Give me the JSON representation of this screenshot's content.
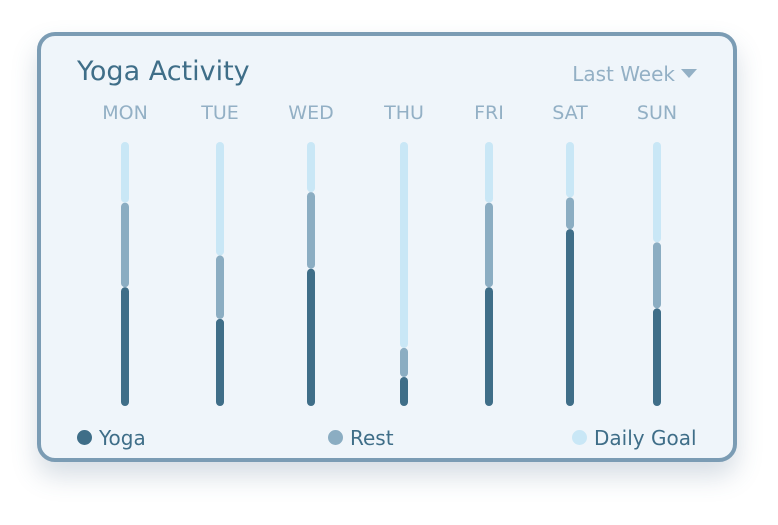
{
  "header": {
    "title": "Yoga Activity",
    "period_label": "Last Week"
  },
  "colors": {
    "yoga": "#3f6e88",
    "rest": "#8badc2",
    "goal": "#c9e7f6",
    "day_label": "#93b0c5",
    "border": "#7b9cb4",
    "background": "#eff5fa"
  },
  "chart_data": {
    "type": "bar",
    "stacked": true,
    "categories": [
      "MON",
      "TUE",
      "WED",
      "THU",
      "FRI",
      "SAT",
      "SUN"
    ],
    "ylim": [
      0,
      100
    ],
    "series": [
      {
        "name": "Yoga",
        "values": [
          45,
          33,
          52,
          11,
          45,
          67,
          37
        ]
      },
      {
        "name": "Rest",
        "values": [
          32,
          24,
          29,
          11,
          32,
          12,
          25
        ]
      },
      {
        "name": "Daily Goal",
        "values": [
          23,
          43,
          19,
          78,
          23,
          21,
          38
        ]
      }
    ],
    "legend": [
      "Yoga",
      "Rest",
      "Daily Goal"
    ],
    "legend_position": "bottom",
    "grid": false
  }
}
